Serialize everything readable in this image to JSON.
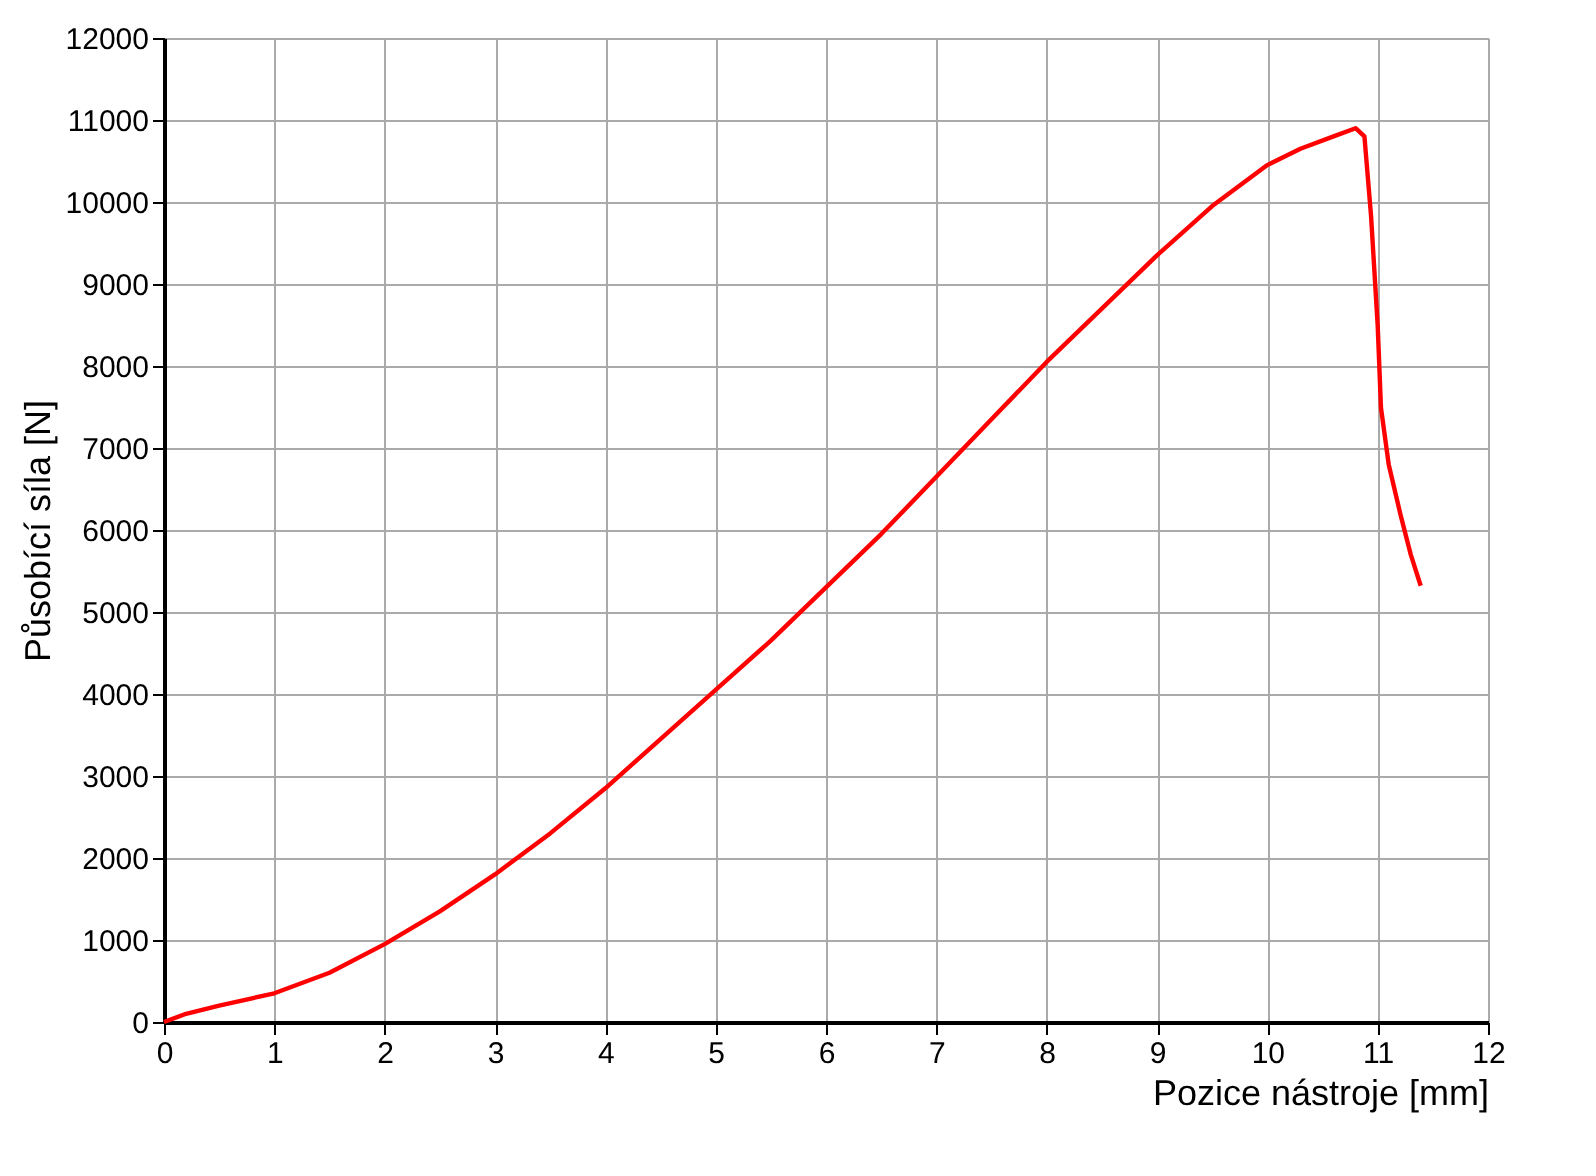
{
  "chart_data": {
    "type": "line",
    "xlabel": "Pozice nástroje [mm]",
    "ylabel": "Působící síla [N]",
    "x": [
      0,
      0.2,
      0.5,
      1,
      1.5,
      2,
      2.5,
      3,
      3.5,
      4,
      4.5,
      5,
      5.5,
      6,
      6.5,
      7,
      7.5,
      8,
      8.5,
      9,
      9.5,
      10,
      10.3,
      10.6,
      10.8,
      10.88,
      10.94,
      11.0,
      11.03,
      11.1,
      11.21,
      11.3,
      11.39
    ],
    "series": [
      {
        "color": "#ff0000",
        "values": [
          0,
          100,
          200,
          350,
          600,
          950,
          1350,
          1800,
          2300,
          2850,
          3450,
          4050,
          4650,
          5300,
          5950,
          6650,
          7350,
          8050,
          8700,
          9350,
          9950,
          10450,
          10650,
          10800,
          10900,
          10800,
          9830,
          8500,
          7490,
          6800,
          6170,
          5700,
          5320
        ]
      }
    ],
    "xlim": [
      0,
      12
    ],
    "xticks": [
      0,
      1,
      2,
      3,
      4,
      5,
      6,
      7,
      8,
      9,
      10,
      11,
      12
    ],
    "ylim": [
      0,
      12000
    ],
    "yticks": [
      0,
      1000,
      2000,
      3000,
      4000,
      5000,
      6000,
      7000,
      8000,
      9000,
      10000,
      11000,
      12000
    ],
    "grid": true,
    "marker": "none",
    "line_style": "solid"
  }
}
